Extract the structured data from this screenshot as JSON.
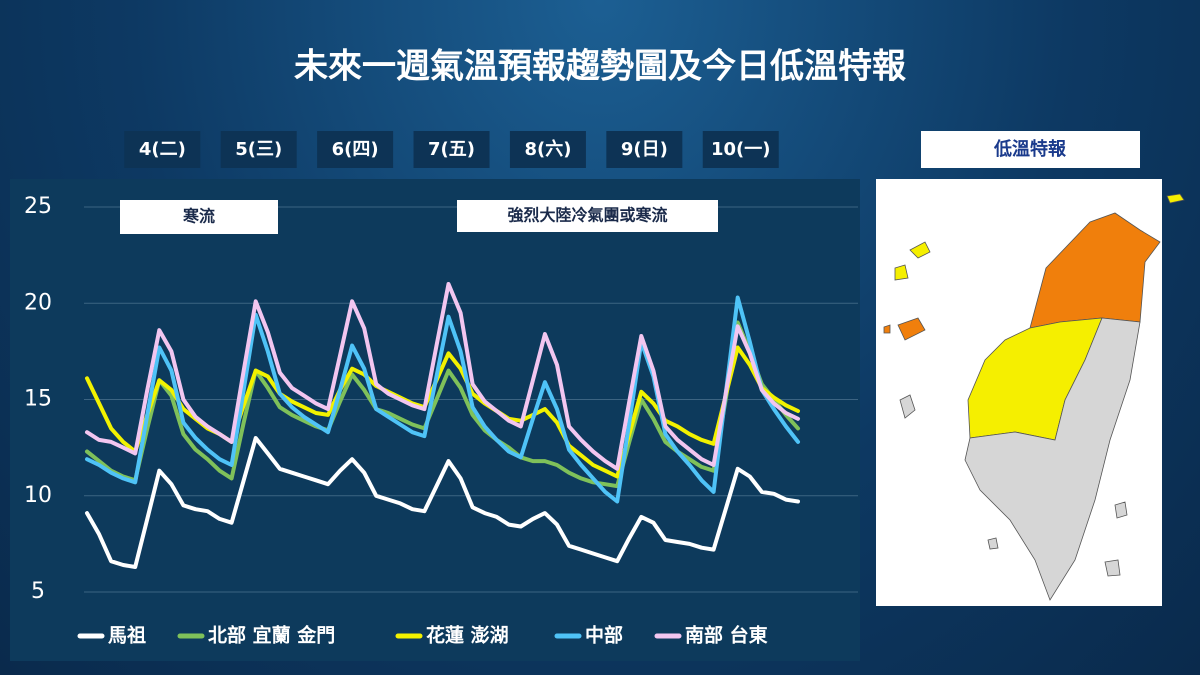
{
  "title": "未來一週氣溫預報趨勢圖及今日低溫特報",
  "chart_data": {
    "type": "line",
    "categories": [
      null,
      null,
      null,
      null,
      null,
      null,
      "4(二)",
      null,
      null,
      null,
      null,
      null,
      null,
      null,
      "5(三)",
      null,
      null,
      null,
      null,
      null,
      null,
      null,
      "6(四)",
      null,
      null,
      null,
      null,
      null,
      null,
      null,
      "7(五)",
      null,
      null,
      null,
      null,
      null,
      null,
      null,
      "8(六)",
      null,
      null,
      null,
      null,
      null,
      null,
      null,
      "9(日)",
      null,
      null,
      null,
      null,
      null,
      null,
      null,
      "10(一)",
      null,
      null,
      null,
      null,
      null
    ],
    "ylim": [
      5,
      25
    ],
    "yticks": [
      5,
      10,
      15,
      20,
      25
    ],
    "grid": true,
    "annotations": [
      "寒流",
      "強烈大陸冷氣團或寒流"
    ],
    "series": [
      {
        "name": "馬祖",
        "color": "#ffffff",
        "values": [
          9.1,
          8.0,
          6.6,
          6.4,
          6.3,
          8.8,
          11.3,
          10.6,
          9.5,
          9.3,
          9.2,
          8.8,
          8.6,
          10.8,
          13.0,
          12.2,
          11.4,
          11.2,
          11.0,
          10.8,
          10.6,
          11.3,
          11.9,
          11.2,
          10.0,
          9.8,
          9.6,
          9.3,
          9.2,
          10.5,
          11.8,
          10.9,
          9.4,
          9.1,
          8.9,
          8.5,
          8.4,
          8.8,
          9.1,
          8.5,
          7.4,
          7.2,
          7.0,
          6.8,
          6.6,
          7.8,
          8.9,
          8.6,
          7.7,
          7.6,
          7.5,
          7.3,
          7.2,
          9.3,
          11.4,
          11.0,
          10.2,
          10.1,
          9.8,
          9.7
        ]
      },
      {
        "name": "北部 宜蘭 金門",
        "color": "#7fc15a",
        "values": [
          12.3,
          11.8,
          11.3,
          11.0,
          10.8,
          13.5,
          16.0,
          15.2,
          13.2,
          12.4,
          11.9,
          11.3,
          10.9,
          13.8,
          16.5,
          15.6,
          14.6,
          14.2,
          13.9,
          13.6,
          13.4,
          14.9,
          16.3,
          15.5,
          14.5,
          14.3,
          14.0,
          13.7,
          13.5,
          15.0,
          16.5,
          15.6,
          14.2,
          13.4,
          12.9,
          12.5,
          12.0,
          11.8,
          11.8,
          11.6,
          11.2,
          10.9,
          10.7,
          10.6,
          10.5,
          12.8,
          15.0,
          14.0,
          12.8,
          12.3,
          11.9,
          11.5,
          11.3,
          15.0,
          19.0,
          17.5,
          15.8,
          15.0,
          14.2,
          13.5
        ]
      },
      {
        "name": "花蓮 澎湖",
        "color": "#f2f200",
        "values": [
          16.1,
          14.8,
          13.5,
          12.8,
          12.3,
          14.2,
          16.0,
          15.5,
          14.5,
          14.0,
          13.5,
          13.2,
          12.8,
          14.7,
          16.5,
          16.2,
          15.3,
          14.9,
          14.6,
          14.3,
          14.2,
          15.5,
          16.6,
          16.3,
          15.7,
          15.4,
          15.1,
          14.8,
          14.6,
          16.0,
          17.4,
          16.6,
          15.3,
          14.8,
          14.4,
          14.0,
          13.9,
          14.2,
          14.5,
          13.8,
          12.6,
          12.1,
          11.6,
          11.3,
          11.0,
          13.2,
          15.4,
          14.8,
          13.9,
          13.6,
          13.2,
          12.9,
          12.7,
          15.2,
          17.7,
          16.8,
          15.6,
          15.1,
          14.7,
          14.4
        ]
      },
      {
        "name": "中部",
        "color": "#4fc3f7",
        "values": [
          11.9,
          11.6,
          11.2,
          10.9,
          10.7,
          14.2,
          17.7,
          16.5,
          13.8,
          13.0,
          12.4,
          11.9,
          11.6,
          15.5,
          19.4,
          17.5,
          15.3,
          14.6,
          14.1,
          13.7,
          13.3,
          15.5,
          17.8,
          16.6,
          14.5,
          14.1,
          13.7,
          13.3,
          13.1,
          16.2,
          19.3,
          17.5,
          14.6,
          13.6,
          12.9,
          12.3,
          12.0,
          14.0,
          15.9,
          14.5,
          12.4,
          11.6,
          10.9,
          10.2,
          9.7,
          13.8,
          18.0,
          16.2,
          13.2,
          12.3,
          11.6,
          10.8,
          10.2,
          15.3,
          20.3,
          18.0,
          15.5,
          14.5,
          13.6,
          12.8
        ]
      },
      {
        "name": "南部 台東",
        "color": "#f2c6f0",
        "values": [
          13.3,
          12.9,
          12.8,
          12.5,
          12.2,
          15.5,
          18.6,
          17.5,
          15.0,
          14.1,
          13.6,
          13.2,
          12.8,
          16.5,
          20.1,
          18.5,
          16.4,
          15.6,
          15.2,
          14.8,
          14.5,
          17.3,
          20.1,
          18.7,
          15.8,
          15.3,
          15.0,
          14.7,
          14.5,
          17.8,
          21.0,
          19.5,
          15.8,
          14.9,
          14.4,
          13.9,
          13.6,
          16.0,
          18.4,
          16.8,
          13.6,
          12.9,
          12.3,
          11.8,
          11.4,
          14.9,
          18.3,
          16.5,
          13.6,
          12.9,
          12.4,
          11.9,
          11.6,
          15.3,
          18.8,
          17.4,
          15.5,
          14.8,
          14.3,
          14.0
        ]
      }
    ]
  },
  "side_panel": {
    "title": "低溫特報"
  }
}
